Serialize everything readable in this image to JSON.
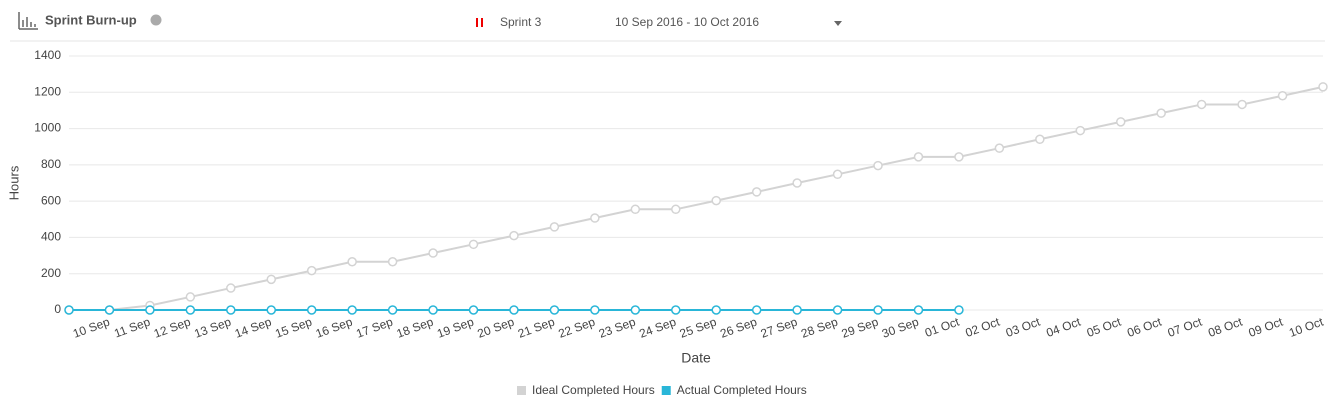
{
  "header": {
    "title": "Sprint Burn-up",
    "sprint": "Sprint 3",
    "date_range": "10 Sep 2016 - 10 Oct 2016"
  },
  "chart_data": {
    "type": "line",
    "x_label": "Date",
    "y_label": "Hours",
    "categories": [
      null,
      "10 Sep",
      "11 Sep",
      "12 Sep",
      "13 Sep",
      "14 Sep",
      "15 Sep",
      "16 Sep",
      "17 Sep",
      "18 Sep",
      "19 Sep",
      "20 Sep",
      "21 Sep",
      "22 Sep",
      "23 Sep",
      "24 Sep",
      "25 Sep",
      "26 Sep",
      "27 Sep",
      "28 Sep",
      "29 Sep",
      "30 Sep",
      "01 Oct",
      "02 Oct",
      "03 Oct",
      "04 Oct",
      "05 Oct",
      "06 Oct",
      "07 Oct",
      "08 Oct",
      "09 Oct",
      "10 Oct"
    ],
    "series": [
      {
        "name": "Ideal Completed Hours",
        "color": "#d3d3d3",
        "values": [
          0,
          0,
          25,
          72,
          121,
          169,
          217,
          266,
          266,
          314,
          362,
          410,
          458,
          507,
          555,
          555,
          603,
          651,
          700,
          748,
          796,
          844,
          844,
          892,
          941,
          989,
          1037,
          1085,
          1133,
          1133,
          1181,
          1230
        ]
      },
      {
        "name": "Actual Completed Hours",
        "color": "#29b6d8",
        "values": [
          0,
          0,
          0,
          0,
          0,
          0,
          0,
          0,
          0,
          0,
          0,
          0,
          0,
          0,
          0,
          0,
          0,
          0,
          0,
          0,
          0,
          0,
          0,
          null,
          null,
          null,
          null,
          null,
          null,
          null,
          null,
          null
        ]
      }
    ],
    "ylim": [
      0,
      1400
    ],
    "yticks": [
      0,
      200,
      400,
      600,
      800,
      1000,
      1200,
      1400
    ],
    "grid": true
  }
}
